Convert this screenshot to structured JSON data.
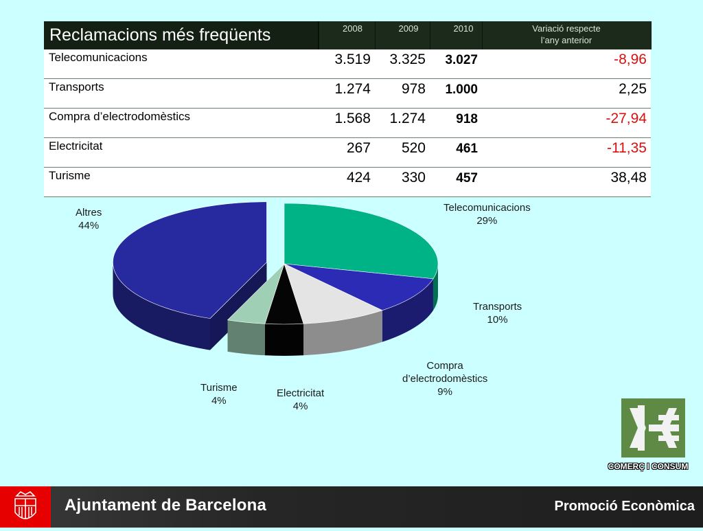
{
  "table": {
    "title": "Reclamacions més freqüents",
    "years": [
      "2008",
      "2009",
      "2010"
    ],
    "variation_header_line1": "Variació respecte",
    "variation_header_line2": "l’any anterior",
    "rows": [
      {
        "name": "Telecomunicacions",
        "y2008": "3.519",
        "y2009": "3.325",
        "y2010": "3.027",
        "variation": "-8,96"
      },
      {
        "name": "Transports",
        "y2008": "1.274",
        "y2009": "978",
        "y2010": "1.000",
        "variation": "2,25"
      },
      {
        "name": "Compra d’electrodomèstics",
        "y2008": "1.568",
        "y2009": "1.274",
        "y2010": "918",
        "variation": "-27,94"
      },
      {
        "name": "Electricitat",
        "y2008": "267",
        "y2009": "520",
        "y2010": "461",
        "variation": "-11,35"
      },
      {
        "name": "Turisme",
        "y2008": "424",
        "y2009": "330",
        "y2010": "457",
        "variation": "38,48"
      }
    ]
  },
  "chart_data": {
    "type": "pie",
    "title": "",
    "slices": [
      {
        "label": "Telecomunicacions",
        "value": 29,
        "display": "29%",
        "color": "#00b386"
      },
      {
        "label": "Transports",
        "value": 10,
        "display": "10%",
        "color": "#2b2bb5"
      },
      {
        "label": "Compra d’electrodomèstics",
        "value": 9,
        "display": "9%",
        "color": "#e4e4e4",
        "label_line1": "Compra",
        "label_line2": "d’electrodomèstics"
      },
      {
        "label": "Electricitat",
        "value": 4,
        "display": "4%",
        "color": "#050505"
      },
      {
        "label": "Turisme",
        "value": 4,
        "display": "4%",
        "color": "#9fd0b5"
      },
      {
        "label": "Altres",
        "value": 44,
        "display": "44%",
        "color": "#272a9e",
        "exploded": true
      }
    ]
  },
  "logo": {
    "text": "COMERÇ I CONSUM",
    "color": "#5e8a45"
  },
  "footer": {
    "city": "Ajuntament de Barcelona",
    "department": "Promoció Econòmica",
    "crest_color": "#e60000"
  }
}
